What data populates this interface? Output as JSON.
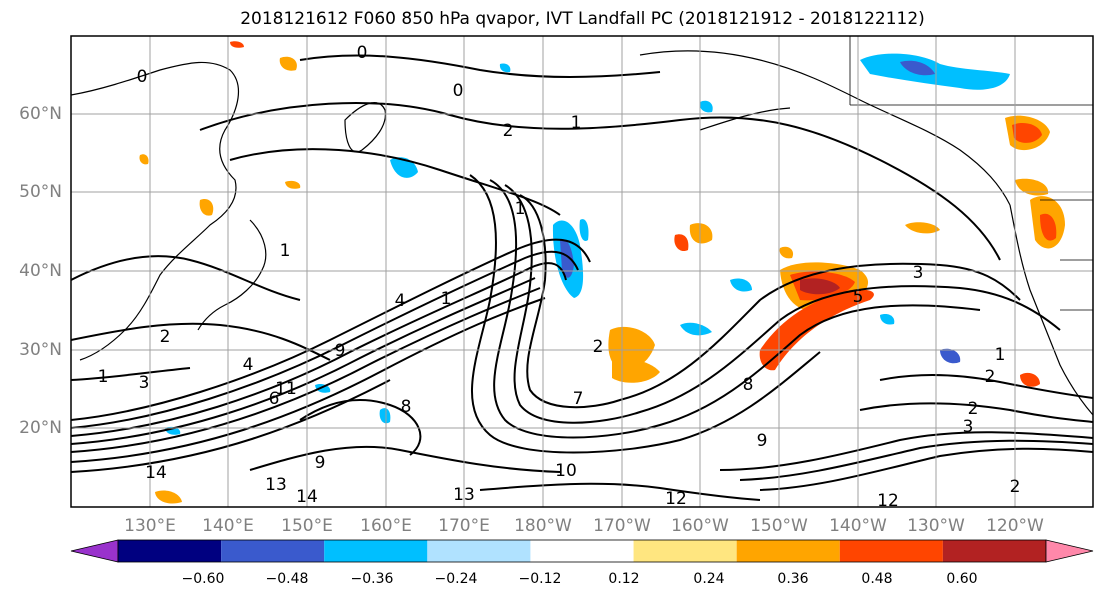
{
  "title": "2018121612 F060 850 hPa qvapor, IVT Landfall PC (2018121912 - 2018122112)",
  "lat_labels": [
    "60°N",
    "50°N",
    "40°N",
    "30°N",
    "20°N"
  ],
  "lon_labels": [
    "130°E",
    "140°E",
    "150°E",
    "160°E",
    "170°E",
    "180°W",
    "170°W",
    "160°W",
    "150°W",
    "140°W",
    "130°W",
    "120°W"
  ],
  "colorbar": {
    "colors": [
      "#9932cc",
      "#000080",
      "#3a5acd",
      "#00bfff",
      "#b0e2ff",
      "#ffffff",
      "#ffe680",
      "#ffa500",
      "#ff4500",
      "#b22222",
      "#ff88aa"
    ],
    "tick_labels": [
      "−0.60",
      "−0.48",
      "−0.36",
      "−0.24",
      "−0.12",
      "0.12",
      "0.24",
      "0.36",
      "0.48",
      "0.60"
    ]
  },
  "contour_labels": [
    "0",
    "0",
    "0",
    "1",
    "1",
    "1",
    "1",
    "1",
    "1",
    "2",
    "2",
    "2",
    "2",
    "2",
    "2",
    "3",
    "3",
    "3",
    "4",
    "4",
    "5",
    "6",
    "7",
    "8",
    "8",
    "9",
    "9",
    "9",
    "10",
    "11",
    "12",
    "12",
    "13",
    "13",
    "14",
    "14"
  ]
}
